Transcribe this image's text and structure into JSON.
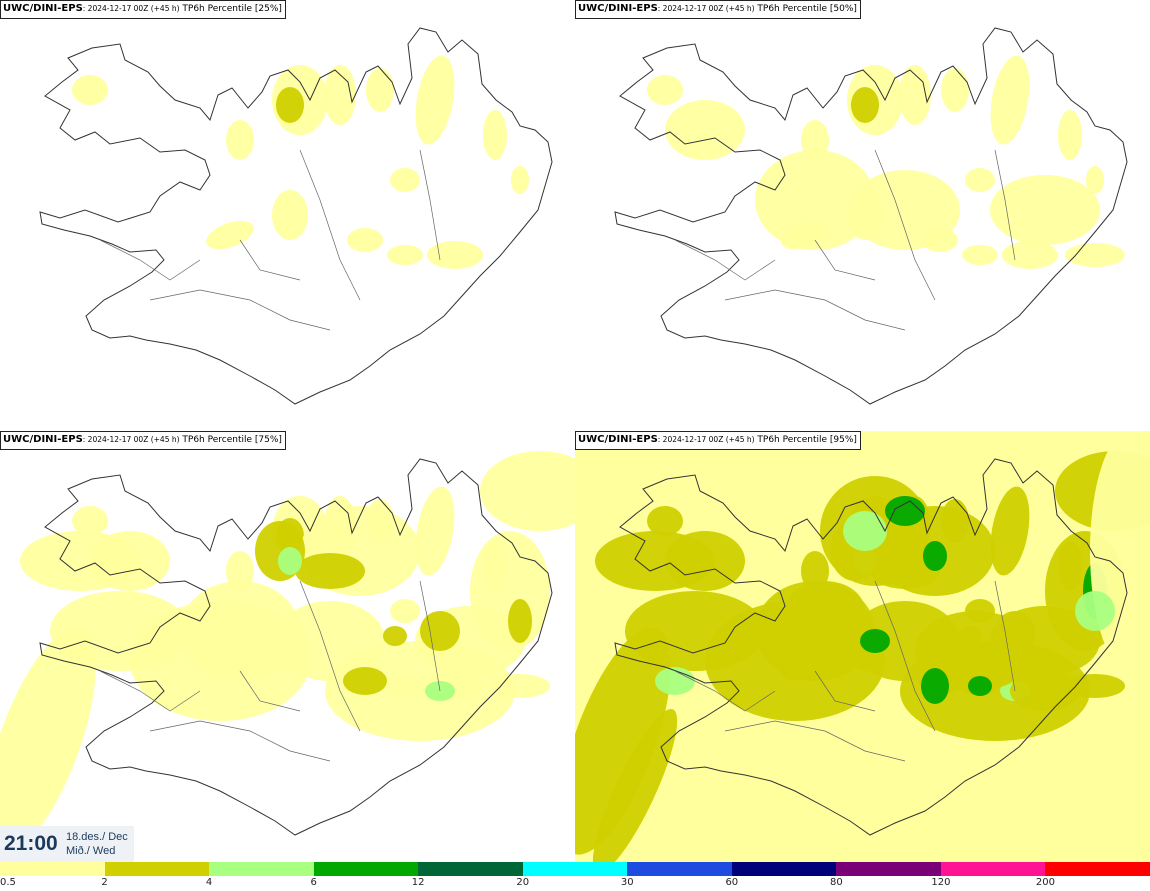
{
  "panels": [
    {
      "model": "UWC/DINI-EPS",
      "run": ": 2024-12-17 00Z (+45 h)",
      "field": "TP6h Percentile [25%]",
      "percentile": 25
    },
    {
      "model": "UWC/DINI-EPS",
      "run": ": 2024-12-17 00Z (+45 h)",
      "field": "TP6h Percentile [50%]",
      "percentile": 50
    },
    {
      "model": "UWC/DINI-EPS",
      "run": ": 2024-12-17 00Z (+45 h)",
      "field": "TP6h Percentile [75%]",
      "percentile": 75
    },
    {
      "model": "UWC/DINI-EPS",
      "run": ": 2024-12-17 00Z (+45 h)",
      "field": "TP6h Percentile [95%]",
      "percentile": 95
    }
  ],
  "valid_time": {
    "time": "21:00",
    "date": "18.des./ Dec",
    "weekday": "Mið./ Wed"
  },
  "legend": {
    "colors": [
      "#ffff9e",
      "#d0d000",
      "#a9ff80",
      "#00a800",
      "#006636",
      "#00ffff",
      "#1e4be0",
      "#00007a",
      "#7a0078",
      "#ff1493",
      "#ff0000"
    ],
    "ticks": [
      "0.5",
      "2",
      "4",
      "6",
      "12",
      "20",
      "30",
      "60",
      "80",
      "120",
      "200"
    ]
  }
}
